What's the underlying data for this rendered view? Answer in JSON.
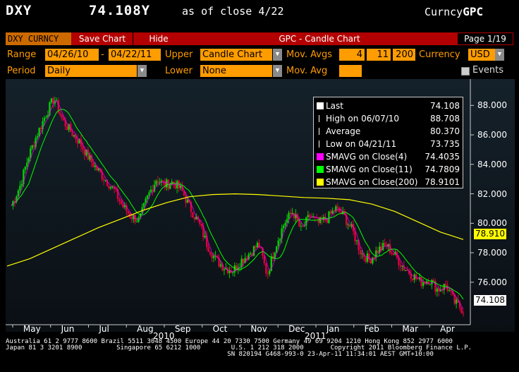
{
  "header": {
    "ticker": "DXY",
    "price": "74.108Y",
    "as_of": "as of close  4/22",
    "market": "Curncy",
    "function": "GPC"
  },
  "toolbar": {
    "security": "DXY CURNCY",
    "save_chart": "Save Chart",
    "hide": "Hide",
    "title": "GPC - Candle Chart",
    "page": "Page 1/19"
  },
  "params": {
    "range_label": "Range",
    "range_start": "04/26/10",
    "range_sep": "-",
    "range_end": "04/22/11",
    "upper_label": "Upper",
    "upper_value": "Candle Chart",
    "mov_avgs_label": "Mov. Avgs",
    "mov_avgs": [
      "4",
      "11",
      "200"
    ],
    "currency_label": "Currency",
    "currency_value": "USD",
    "period_label": "Period",
    "period_value": "Daily",
    "lower_label": "Lower",
    "lower_value": "None",
    "mov_avg_label": "Mov. Avg",
    "events_label": "Events"
  },
  "legend": {
    "rows": [
      {
        "label": "Last",
        "value": "74.108",
        "swatch": "#ffffff"
      },
      {
        "label": "High on 06/07/10",
        "value": "88.708",
        "swatch": "none"
      },
      {
        "label": "Average",
        "value": "80.370",
        "swatch": "none"
      },
      {
        "label": "Low on 04/21/11",
        "value": "73.735",
        "swatch": "none"
      },
      {
        "label": "SMAVG on Close(4)",
        "value": "74.4035",
        "swatch": "#ff00ff"
      },
      {
        "label": "SMAVG on Close(11)",
        "value": "74.7809",
        "swatch": "#00ff00"
      },
      {
        "label": "SMAVG on Close(200)",
        "value": "78.9101",
        "swatch": "#ffff00"
      }
    ]
  },
  "last_labels": {
    "sma200": "78.910",
    "last": "74.108"
  },
  "chart_data": {
    "type": "candlestick",
    "y_ticks": [
      "88.000",
      "86.000",
      "84.000",
      "82.000",
      "80.000",
      "78.000",
      "76.000"
    ],
    "x_months": [
      "May",
      "Jun",
      "Jul",
      "Aug",
      "Sep",
      "Oct",
      "Nov",
      "Dec",
      "Jan",
      "Feb",
      "Mar",
      "Apr"
    ],
    "x_years": [
      "2010",
      "2011"
    ],
    "ylim": [
      73.5,
      89.5
    ],
    "close_path": [
      81.2,
      82.5,
      84.5,
      86,
      87.3,
      88.5,
      87,
      86.2,
      85.5,
      84.5,
      83.7,
      83,
      82.3,
      81.2,
      80.5,
      80.2,
      81.8,
      83,
      82.6,
      82.8,
      82.2,
      81,
      80,
      78.5,
      77.5,
      77,
      76.8,
      77.5,
      78,
      78.6,
      76.5,
      78.5,
      80,
      80.8,
      79.5,
      80.5,
      80,
      80.3,
      81,
      80.5,
      79.5,
      78,
      77.5,
      78.2,
      78.5,
      77.8,
      77,
      76.5,
      76,
      76.2,
      75.5,
      75.8,
      74.6,
      74.1
    ],
    "sma200": [
      77.1,
      77.6,
      78.3,
      79,
      79.7,
      80.3,
      80.9,
      81.4,
      81.8,
      81.95,
      82,
      81.95,
      81.85,
      81.75,
      81.7,
      81.6,
      81.3,
      80.8,
      80.1,
      79.4,
      78.9
    ],
    "series_colors": {
      "sma4": "#ff00ff",
      "sma11": "#00ff00",
      "sma200": "#ffff00"
    }
  },
  "footer": {
    "line1": "Australia 61 2 9777 8600 Brazil 5511 3048 4500 Europe 44 20 7330 7500 Germany 49 69 9204 1210 Hong Kong 852 2977 6000",
    "line2": "Japan 81 3 3201 8900         Singapore 65 6212 1000        U.S. 1 212 318 2000       Copyright 2011 Bloomberg Finance L.P.",
    "line3": "                                                          SN 820194 G468-993-0 23-Apr-11 11:34:01 AEST GMT+10:00"
  }
}
